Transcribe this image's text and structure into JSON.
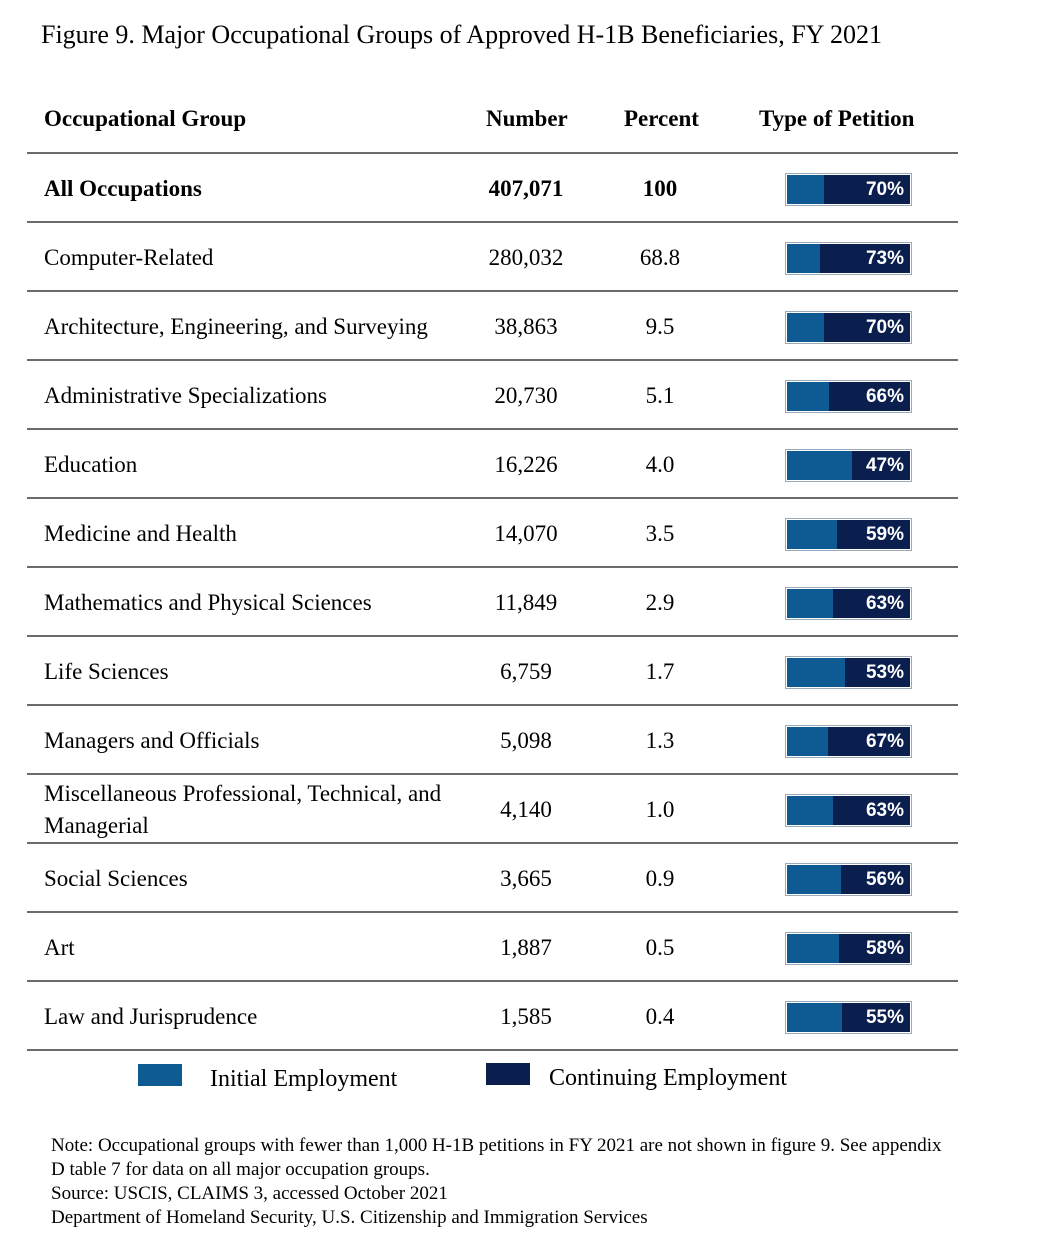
{
  "title": "Figure 9. Major Occupational Groups of Approved H-1B Beneficiaries, FY 2021",
  "chart_data": {
    "type": "table",
    "headers": {
      "group": "Occupational Group",
      "number": "Number",
      "percent": "Percent",
      "petition": "Type of Petition"
    },
    "rows": [
      {
        "group": "All Occupations",
        "number": "407,071",
        "percent": "100",
        "continuing_pct": 70,
        "continuing_label": "70%",
        "total": true
      },
      {
        "group": "Computer-Related",
        "number": "280,032",
        "percent": "68.8",
        "continuing_pct": 73,
        "continuing_label": "73%"
      },
      {
        "group": "Architecture, Engineering, and Surveying",
        "number": "38,863",
        "percent": "9.5",
        "continuing_pct": 70,
        "continuing_label": "70%"
      },
      {
        "group": "Administrative Specializations",
        "number": "20,730",
        "percent": "5.1",
        "continuing_pct": 66,
        "continuing_label": "66%"
      },
      {
        "group": "Education",
        "number": "16,226",
        "percent": "4.0",
        "continuing_pct": 47,
        "continuing_label": "47%"
      },
      {
        "group": "Medicine and Health",
        "number": "14,070",
        "percent": "3.5",
        "continuing_pct": 59,
        "continuing_label": "59%"
      },
      {
        "group": "Mathematics and Physical Sciences",
        "number": "11,849",
        "percent": "2.9",
        "continuing_pct": 63,
        "continuing_label": "63%"
      },
      {
        "group": "Life Sciences",
        "number": "6,759",
        "percent": "1.7",
        "continuing_pct": 53,
        "continuing_label": "53%"
      },
      {
        "group": "Managers and Officials",
        "number": "5,098",
        "percent": "1.3",
        "continuing_pct": 67,
        "continuing_label": "67%"
      },
      {
        "group": "Miscellaneous Professional, Technical, and Managerial",
        "number": "4,140",
        "percent": "1.0",
        "continuing_pct": 63,
        "continuing_label": "63%"
      },
      {
        "group": "Social Sciences",
        "number": "3,665",
        "percent": "0.9",
        "continuing_pct": 56,
        "continuing_label": "56%"
      },
      {
        "group": "Art",
        "number": "1,887",
        "percent": "0.5",
        "continuing_pct": 58,
        "continuing_label": "58%"
      },
      {
        "group": "Law and Jurisprudence",
        "number": "1,585",
        "percent": "0.4",
        "continuing_pct": 55,
        "continuing_label": "55%"
      }
    ],
    "legend": [
      {
        "name": "Initial Employment",
        "color": "#0e5a93"
      },
      {
        "name": "Continuing Employment",
        "color": "#0b1f4f"
      }
    ]
  },
  "notes": [
    "Note: Occupational groups with fewer than 1,000 H-1B petitions in FY 2021 are not shown in figure 9.  See appendix",
    "D table 7 for data on all major occupation groups.",
    "Source: USCIS, CLAIMS 3, accessed October 2021",
    "Department of Homeland Security, U.S. Citizenship and Immigration Services"
  ]
}
